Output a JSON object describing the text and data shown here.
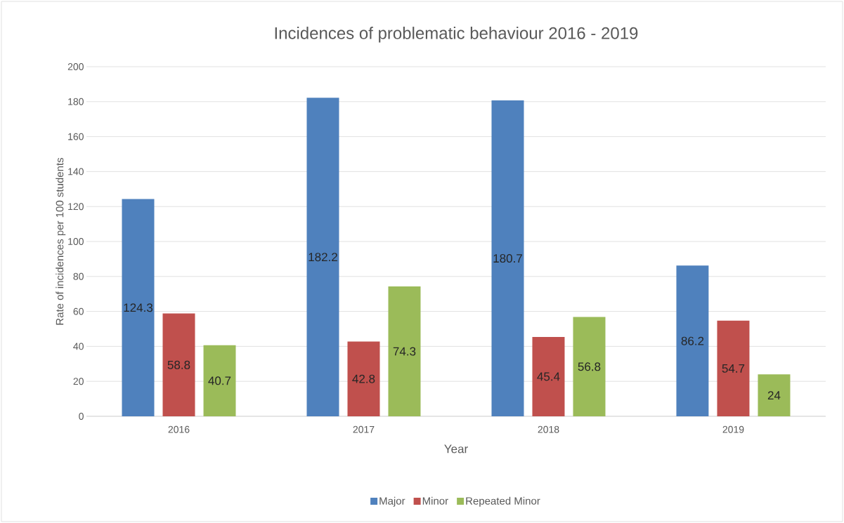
{
  "chart_data": {
    "type": "bar",
    "title": "Incidences of problematic behaviour 2016 - 2019",
    "xlabel": "Year",
    "ylabel": "Rate of incidences per 100 students",
    "categories": [
      "2016",
      "2017",
      "2018",
      "2019"
    ],
    "series": [
      {
        "name": "Major",
        "color": "#4f81bd",
        "values": [
          124.3,
          182.2,
          180.7,
          86.2
        ]
      },
      {
        "name": "Minor",
        "color": "#c0504d",
        "values": [
          58.8,
          42.8,
          45.4,
          54.7
        ]
      },
      {
        "name": "Repeated Minor",
        "color": "#9bbb59",
        "values": [
          40.7,
          74.3,
          56.8,
          24
        ]
      }
    ],
    "ylim": [
      0,
      200
    ],
    "yticks": [
      0,
      20,
      40,
      60,
      80,
      100,
      120,
      140,
      160,
      180,
      200
    ],
    "grid": "y",
    "legend": "bottom",
    "data_labels": true
  }
}
